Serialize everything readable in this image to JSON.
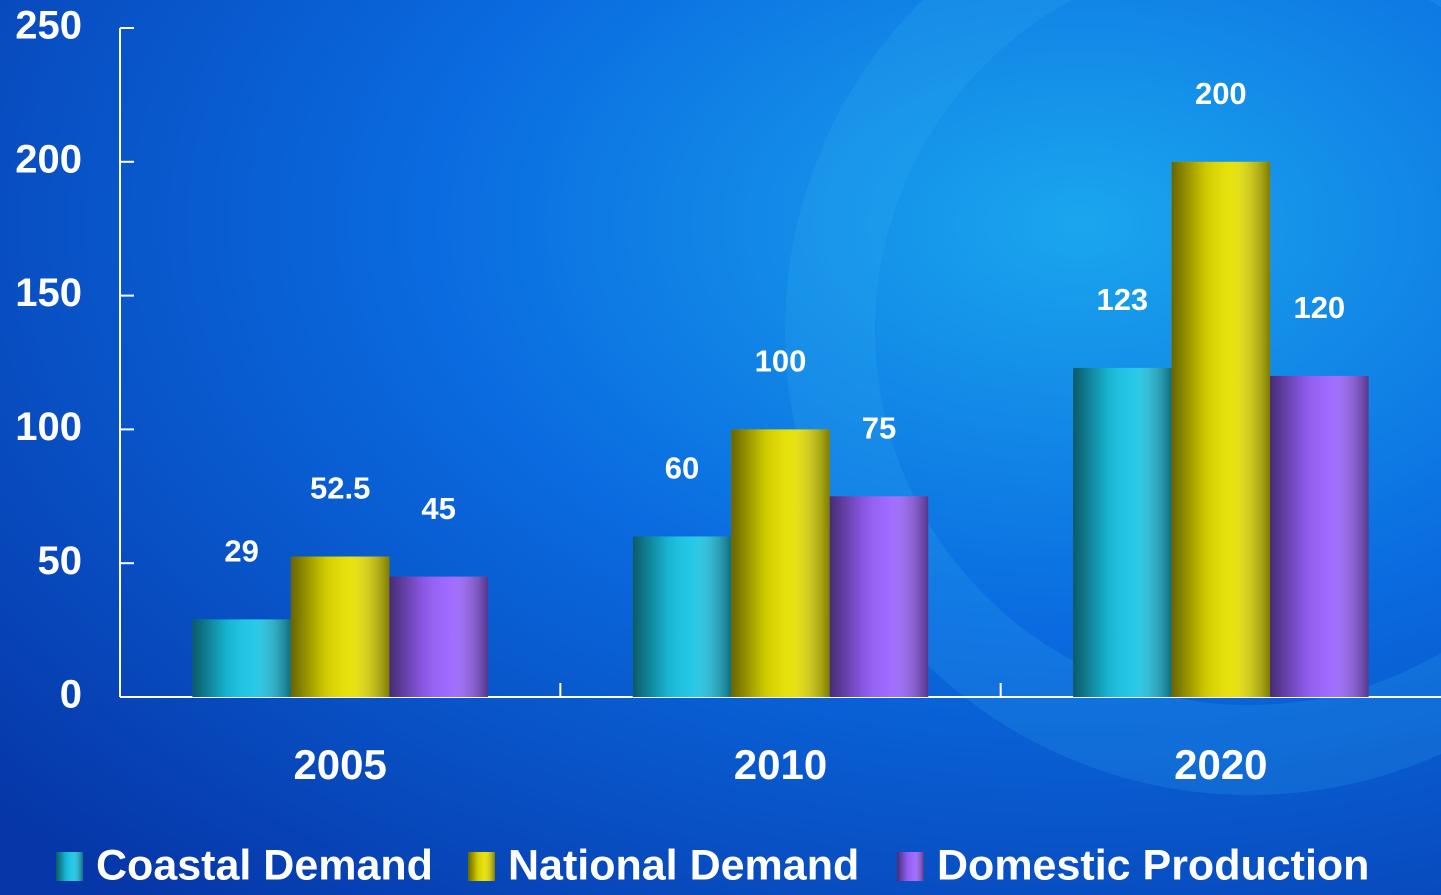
{
  "chart_data": {
    "type": "bar",
    "categories": [
      "2005",
      "2010",
      "2020"
    ],
    "series": [
      {
        "name": "Coastal Demand",
        "color": "#19c6e6",
        "values": [
          29,
          60,
          123
        ]
      },
      {
        "name": "National Demand",
        "color": "#e6e000",
        "values": [
          52.5,
          100,
          200
        ]
      },
      {
        "name": "Domestic Production",
        "color": "#9a62ff",
        "values": [
          45,
          75,
          120
        ]
      }
    ],
    "ylim": [
      0,
      250
    ],
    "yticks": [
      0,
      50,
      100,
      150,
      200,
      250
    ],
    "grid": false,
    "legend": "bottom"
  }
}
